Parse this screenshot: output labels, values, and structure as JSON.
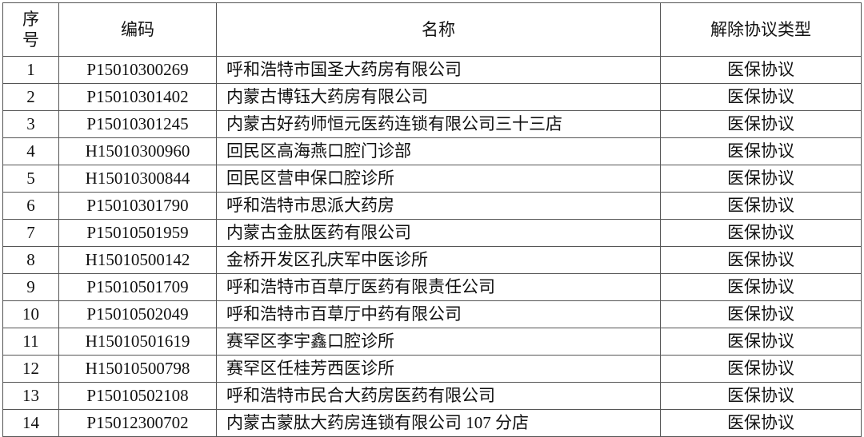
{
  "table": {
    "headers": [
      "序号",
      "编码",
      "名称",
      "解除协议类型"
    ],
    "rows": [
      [
        "1",
        "P15010300269",
        "呼和浩特市国圣大药房有限公司",
        "医保协议"
      ],
      [
        "2",
        "P15010301402",
        "内蒙古博钰大药房有限公司",
        "医保协议"
      ],
      [
        "3",
        "P15010301245",
        "内蒙古好药师恒元医药连锁有限公司三十三店",
        "医保协议"
      ],
      [
        "4",
        "H15010300960",
        "回民区高海燕口腔门诊部",
        "医保协议"
      ],
      [
        "5",
        "H15010300844",
        "回民区营申保口腔诊所",
        "医保协议"
      ],
      [
        "6",
        "P15010301790",
        "呼和浩特市思派大药房",
        "医保协议"
      ],
      [
        "7",
        "P15010501959",
        "内蒙古金肽医药有限公司",
        "医保协议"
      ],
      [
        "8",
        "H15010500142",
        "金桥开发区孔庆军中医诊所",
        "医保协议"
      ],
      [
        "9",
        "P15010501709",
        "呼和浩特市百草厅医药有限责任公司",
        "医保协议"
      ],
      [
        "10",
        "P15010502049",
        "呼和浩特市百草厅中药有限公司",
        "医保协议"
      ],
      [
        "11",
        "H15010501619",
        "赛罕区李宇鑫口腔诊所",
        "医保协议"
      ],
      [
        "12",
        "H15010500798",
        "赛罕区任桂芳西医诊所",
        "医保协议"
      ],
      [
        "13",
        "P15010502108",
        "呼和浩特市民合大药房医药有限公司",
        "医保协议"
      ],
      [
        "14",
        "P15012300702",
        "内蒙古蒙肽大药房连锁有限公司 107 分店",
        "医保协议"
      ]
    ]
  }
}
